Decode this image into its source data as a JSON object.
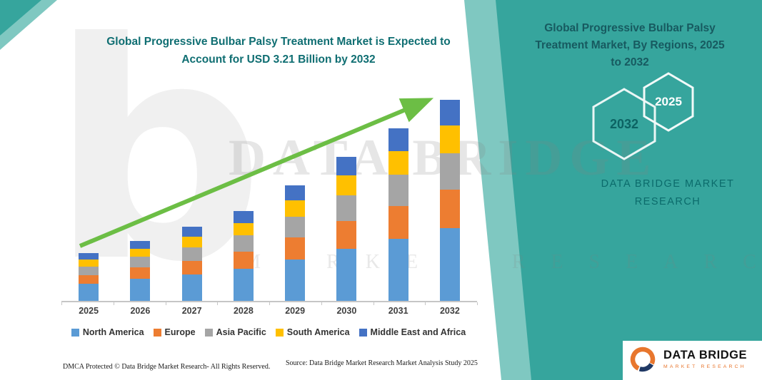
{
  "chart_header": {
    "line1": "Global Progressive Bulbar Palsy Treatment Market is Expected to",
    "line2": "Account for USD 3.21 Billion by 2032"
  },
  "right_panel": {
    "title_line1": "Global Progressive Bulbar Palsy",
    "title_line2": "Treatment Market, By Regions, 2025",
    "title_line3": "to 2032",
    "year_back": "2032",
    "year_front": "2025",
    "brand_line1": "DATA BRIDGE MARKET",
    "brand_line2": "RESEARCH"
  },
  "watermark": {
    "letter": "b",
    "title": "DATA BRIDGE",
    "subtitle": "MARKET RESEARCH"
  },
  "footer": {
    "dmca": "DMCA Protected © Data Bridge Market Research-  All Rights Reserved.",
    "source": "Source: Data Bridge Market Research  Market Analysis Study 2025"
  },
  "logo": {
    "name": "DATA BRIDGE",
    "tagline": "MARKET RESEARCH"
  },
  "colors": {
    "teal_panel": "#36A59D",
    "teal_accent_band": "#7FC8C1",
    "title_teal": "#0F6E72",
    "panel_title_text": "#175A60",
    "brand_teal": "#0B6B6B",
    "hexagon_stroke": "#EAF6F5",
    "arrow_green": "#6CBE45",
    "logo_orange": "#E8762D",
    "logo_navy": "#1F3864",
    "axis_gray": "#C6C6C6"
  },
  "chart_data": {
    "type": "bar",
    "stacked": true,
    "title": "Global Progressive Bulbar Palsy Treatment Market is Expected to Account for USD 3.21 Billion by 2032",
    "xlabel": "",
    "ylabel": "",
    "unit": "USD Billion",
    "ylim": [
      0,
      3.5
    ],
    "grid": false,
    "legend_position": "bottom",
    "trend_arrow": true,
    "categories": [
      "2025",
      "2026",
      "2027",
      "2028",
      "2029",
      "2030",
      "2031",
      "2032"
    ],
    "totals": [
      0.76,
      0.96,
      1.18,
      1.43,
      1.84,
      2.3,
      2.75,
      3.21
    ],
    "series": [
      {
        "name": "North America",
        "color": "#5B9BD5",
        "values": [
          0.27,
          0.35,
          0.42,
          0.51,
          0.66,
          0.83,
          0.99,
          1.16
        ]
      },
      {
        "name": "Europe",
        "color": "#ED7D31",
        "values": [
          0.14,
          0.18,
          0.22,
          0.27,
          0.35,
          0.44,
          0.52,
          0.61
        ]
      },
      {
        "name": "Asia Pacific",
        "color": "#A5A5A5",
        "values": [
          0.14,
          0.17,
          0.21,
          0.26,
          0.33,
          0.41,
          0.5,
          0.58
        ]
      },
      {
        "name": "South America",
        "color": "#FFC000",
        "values": [
          0.11,
          0.13,
          0.17,
          0.2,
          0.26,
          0.32,
          0.38,
          0.45
        ]
      },
      {
        "name": "Middle East and Africa",
        "color": "#4472C4",
        "values": [
          0.1,
          0.13,
          0.16,
          0.19,
          0.24,
          0.3,
          0.36,
          0.41
        ]
      }
    ]
  }
}
